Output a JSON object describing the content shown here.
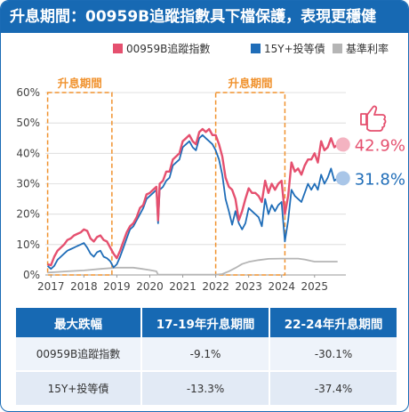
{
  "title": "升息期間：00959B追蹤指數具下檔保護，表現更穩健",
  "colors": {
    "brand": "#1769b3",
    "series_index": "#e5506f",
    "series_bond": "#1f6db8",
    "series_rate": "#b5b5b5",
    "highlight_box": "#f0922e"
  },
  "chart_data": {
    "type": "line",
    "x_ticks": [
      "2017",
      "2018",
      "2019",
      "2020",
      "2021",
      "2022",
      "2023",
      "2024",
      "2025"
    ],
    "y_ticks": [
      "0%",
      "10%",
      "20%",
      "30%",
      "40%",
      "50%",
      "60%"
    ],
    "ylim": [
      0,
      60
    ],
    "xlim": [
      2016.83,
      2025.95
    ],
    "legend": [
      "00959B追蹤指數",
      "15Y+投等債",
      "基準利率"
    ],
    "legend_position": "top",
    "series": [
      {
        "name": "00959B追蹤指數",
        "end_label": "42.9%",
        "x": [
          2016.9,
          2017.0,
          2017.1,
          2017.2,
          2017.3,
          2017.4,
          2017.5,
          2017.6,
          2017.7,
          2017.8,
          2017.9,
          2018.0,
          2018.1,
          2018.2,
          2018.3,
          2018.4,
          2018.5,
          2018.6,
          2018.7,
          2018.8,
          2018.9,
          2019.0,
          2019.1,
          2019.2,
          2019.3,
          2019.4,
          2019.5,
          2019.6,
          2019.7,
          2019.8,
          2019.9,
          2020.0,
          2020.1,
          2020.2,
          2020.25,
          2020.3,
          2020.4,
          2020.5,
          2020.6,
          2020.7,
          2020.8,
          2020.9,
          2021.0,
          2021.1,
          2021.2,
          2021.3,
          2021.4,
          2021.5,
          2021.6,
          2021.7,
          2021.8,
          2021.9,
          2022.0,
          2022.1,
          2022.2,
          2022.3,
          2022.4,
          2022.5,
          2022.6,
          2022.7,
          2022.8,
          2022.9,
          2023.0,
          2023.1,
          2023.2,
          2023.3,
          2023.4,
          2023.5,
          2023.6,
          2023.7,
          2023.8,
          2023.9,
          2024.0,
          2024.1,
          2024.2,
          2024.3,
          2024.4,
          2024.5,
          2024.6,
          2024.7,
          2024.8,
          2024.9,
          2025.0,
          2025.1,
          2025.2,
          2025.3,
          2025.4,
          2025.5,
          2025.6,
          2025.7
        ],
        "values": [
          3.5,
          3.2,
          6,
          8,
          9,
          10,
          11.5,
          12,
          13,
          13.5,
          14,
          15,
          14.5,
          12,
          11,
          12.5,
          13,
          11.5,
          11,
          9,
          7,
          5.5,
          8,
          11,
          14,
          16,
          17,
          19,
          22,
          23,
          26.5,
          27,
          28,
          29,
          18,
          30,
          31,
          34,
          34,
          38,
          39,
          40,
          44,
          45,
          46,
          44,
          43,
          47,
          48,
          47,
          48,
          46,
          46,
          43,
          39,
          32,
          29,
          28,
          25,
          18,
          21,
          25,
          28.5,
          27,
          27,
          26,
          24,
          31,
          27,
          30,
          28,
          30,
          31,
          20,
          26,
          37,
          34,
          35,
          33,
          36,
          38,
          38,
          40,
          37,
          44,
          41,
          42,
          45,
          42,
          42.9
        ]
      },
      {
        "name": "15Y+投等債",
        "end_label": "31.8%",
        "x": [
          2016.9,
          2017.0,
          2017.1,
          2017.2,
          2017.3,
          2017.4,
          2017.5,
          2017.6,
          2017.7,
          2017.8,
          2017.9,
          2018.0,
          2018.1,
          2018.2,
          2018.3,
          2018.4,
          2018.5,
          2018.6,
          2018.7,
          2018.8,
          2018.9,
          2019.0,
          2019.1,
          2019.2,
          2019.3,
          2019.4,
          2019.5,
          2019.6,
          2019.7,
          2019.8,
          2019.9,
          2020.0,
          2020.1,
          2020.2,
          2020.25,
          2020.3,
          2020.4,
          2020.5,
          2020.6,
          2020.7,
          2020.8,
          2020.9,
          2021.0,
          2021.1,
          2021.2,
          2021.3,
          2021.4,
          2021.5,
          2021.6,
          2021.7,
          2021.8,
          2021.9,
          2022.0,
          2022.1,
          2022.2,
          2022.3,
          2022.4,
          2022.5,
          2022.6,
          2022.7,
          2022.8,
          2022.9,
          2023.0,
          2023.1,
          2023.2,
          2023.3,
          2023.4,
          2023.5,
          2023.6,
          2023.7,
          2023.8,
          2023.9,
          2024.0,
          2024.1,
          2024.2,
          2024.3,
          2024.4,
          2024.5,
          2024.6,
          2024.7,
          2024.8,
          2024.9,
          2025.0,
          2025.1,
          2025.2,
          2025.3,
          2025.4,
          2025.5,
          2025.6,
          2025.7
        ],
        "values": [
          3,
          2,
          3,
          5,
          6,
          7,
          8,
          8.5,
          9,
          9.5,
          10,
          10.5,
          9,
          7,
          6,
          7.5,
          8,
          6,
          5.5,
          4.5,
          2.5,
          3.5,
          6,
          9,
          12,
          15,
          16,
          18,
          20,
          22,
          25,
          26,
          27,
          28,
          17,
          28,
          29,
          31,
          32,
          36,
          37,
          38,
          42,
          43,
          44,
          42,
          41,
          45,
          46,
          45,
          44,
          43,
          41,
          38,
          33,
          25,
          21,
          16.5,
          21,
          17,
          15,
          17,
          22,
          21,
          20,
          19,
          16,
          25,
          20,
          23,
          21,
          23,
          24,
          11,
          18,
          28,
          26,
          25,
          24,
          27,
          30,
          28,
          30,
          28,
          33,
          30,
          32,
          35,
          31,
          31.8
        ]
      },
      {
        "name": "基準利率",
        "x": [
          2016.9,
          2017.2,
          2017.5,
          2018.0,
          2018.5,
          2019.0,
          2019.5,
          2019.7,
          2020.0,
          2020.2,
          2020.25,
          2021.0,
          2022.0,
          2022.2,
          2022.4,
          2022.6,
          2022.8,
          2023.0,
          2023.3,
          2023.6,
          2024.0,
          2024.5,
          2024.7,
          2024.9,
          2025.0,
          2025.5,
          2025.7
        ],
        "values": [
          0.8,
          1.0,
          1.2,
          1.5,
          2.0,
          2.4,
          2.4,
          2.1,
          1.6,
          1.2,
          0.1,
          0.1,
          0.1,
          0.3,
          1.2,
          2.3,
          3.6,
          4.3,
          4.9,
          5.3,
          5.4,
          5.4,
          5.1,
          4.6,
          4.4,
          4.4,
          4.4
        ]
      }
    ],
    "highlight_periods": [
      {
        "label": "升息期間",
        "x_start": 2016.9,
        "x_end": 2018.85,
        "y_top": 60
      },
      {
        "label": "升息期間",
        "x_start": 2022.0,
        "x_end": 2024.1,
        "y_top": 60
      }
    ]
  },
  "table": {
    "headers": [
      "最大跌幅",
      "17-19年升息期間",
      "22-24年升息期間"
    ],
    "rows": [
      [
        "00959B追蹤指數",
        "-9.1%",
        "-30.1%"
      ],
      [
        "15Y+投等債",
        "-13.3%",
        "-37.4%"
      ]
    ]
  }
}
